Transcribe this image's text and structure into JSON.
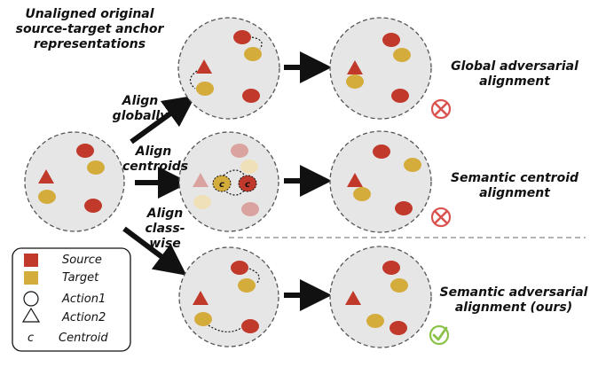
{
  "labels": {
    "unaligned": "Unaligned original\nsource-target anchor\nrepresentations",
    "align_globally": "Align\nglobally",
    "align_centroids": "Align\ncentroids",
    "align_classwise": "Align\nclass-wise",
    "global_result": "Global adversarial\nalignment",
    "centroid_result": "Semantic centroid\nalignment",
    "ours_result": "Semantic adversarial\nalignment (ours)"
  },
  "legend": {
    "source": "Source",
    "target": "Target",
    "action1": "Action1",
    "action2": "Action2",
    "centroid_symbol": "c",
    "centroid": "Centroid"
  },
  "centroid_marker": "c",
  "colors": {
    "source": "#c0392b",
    "target": "#d4ac3c",
    "circle_fill": "#e6e6e6",
    "circle_stroke": "#555555",
    "fail": "#d9534f",
    "success": "#8bc34a"
  },
  "status_icons": [
    "cross-icon",
    "cross-icon",
    "check-icon"
  ]
}
